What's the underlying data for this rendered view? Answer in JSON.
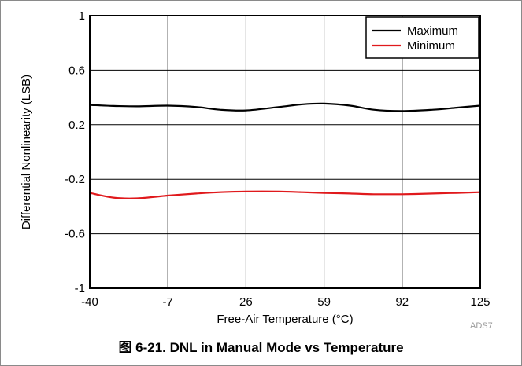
{
  "caption": "图 6-21. DNL in Manual Mode vs Temperature",
  "chart_data": {
    "type": "line",
    "title": "",
    "xlabel": "Free-Air Temperature (°C)",
    "ylabel": "Differential Nonlinearity (LSB)",
    "xlim": [
      -40,
      125
    ],
    "ylim": [
      -1,
      1
    ],
    "xticks": [
      -40,
      -7,
      26,
      59,
      92,
      125
    ],
    "yticks": [
      1,
      0.6,
      0.2,
      -0.2,
      -0.6,
      -1
    ],
    "xtick_labels": [
      "-40",
      "-7",
      "26",
      "59",
      "92",
      "125"
    ],
    "ytick_labels": [
      "1",
      "0.6",
      "0.2",
      "-0.2",
      "-0.6",
      "-1"
    ],
    "grid": true,
    "legend_position": "top-right",
    "source_label": "ADS7",
    "series": [
      {
        "name": "Maximum",
        "color": "#000000",
        "x": [
          -40,
          -30,
          -20,
          -7,
          5,
          15,
          26,
          40,
          50,
          59,
          70,
          80,
          92,
          105,
          115,
          125
        ],
        "y": [
          0.345,
          0.338,
          0.335,
          0.34,
          0.33,
          0.31,
          0.305,
          0.33,
          0.35,
          0.355,
          0.34,
          0.31,
          0.3,
          0.31,
          0.325,
          0.34
        ]
      },
      {
        "name": "Minimum",
        "color": "#e0191c",
        "x": [
          -40,
          -30,
          -20,
          -7,
          5,
          15,
          26,
          40,
          50,
          59,
          70,
          80,
          92,
          105,
          115,
          125
        ],
        "y": [
          -0.3,
          -0.335,
          -0.34,
          -0.32,
          -0.305,
          -0.295,
          -0.29,
          -0.29,
          -0.295,
          -0.3,
          -0.305,
          -0.31,
          -0.31,
          -0.305,
          -0.3,
          -0.295
        ]
      }
    ]
  }
}
